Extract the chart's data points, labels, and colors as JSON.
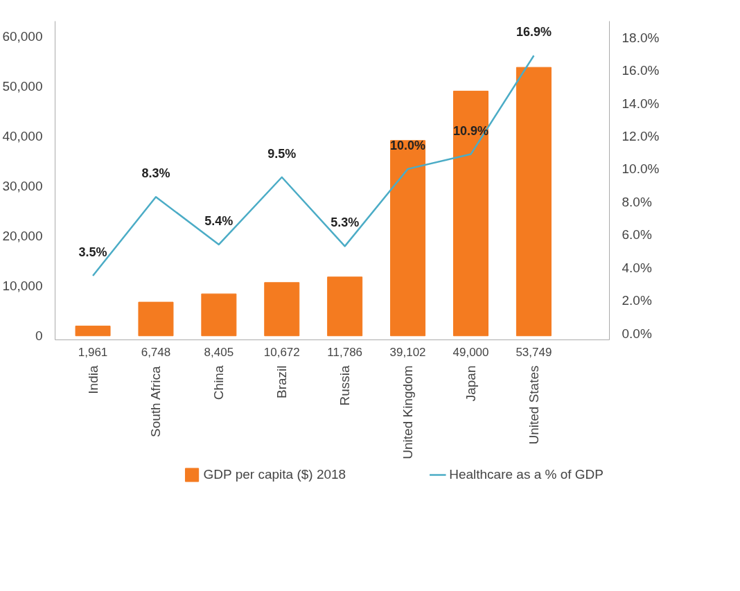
{
  "chart_data": {
    "type": "bar",
    "categories": [
      "India",
      "South Africa",
      "China",
      "Brazil",
      "Russia",
      "United Kingdom",
      "Japan",
      "United States"
    ],
    "series": [
      {
        "name": "GDP per capita ($) 2018",
        "color": "#f47b20",
        "values": [
          1961,
          6748,
          8405,
          10672,
          11786,
          39102,
          49000,
          53749
        ],
        "value_labels": [
          "1,961",
          "6,748",
          "8,405",
          "10,672",
          "11,786",
          "39,102",
          "49,000",
          "53,749"
        ]
      },
      {
        "name": "Healthcare as a % of GDP",
        "color": "#4bacc6",
        "type": "line",
        "axis": "y2",
        "values": [
          3.5,
          8.3,
          5.4,
          9.5,
          5.3,
          10.0,
          10.9,
          16.9
        ],
        "value_labels": [
          "3.5%",
          "8.3%",
          "5.4%",
          "9.5%",
          "5.3%",
          "10.0%",
          "10.9%",
          "16.9%"
        ]
      }
    ],
    "ylim": [
      -800,
      63000
    ],
    "yticks": [
      {
        "value": 0,
        "label": "0"
      },
      {
        "value": 10000,
        "label": "10,000"
      },
      {
        "value": 20000,
        "label": "20,000"
      },
      {
        "value": 30000,
        "label": "30,000"
      },
      {
        "value": 40000,
        "label": "40,000"
      },
      {
        "value": 50000,
        "label": "50,000"
      },
      {
        "value": 60000,
        "label": "60,000"
      }
    ],
    "y2lim": [
      -0.4,
      19.0
    ],
    "y2ticks": [
      {
        "value": 0,
        "label": "0.0%"
      },
      {
        "value": 2,
        "label": "2.0%"
      },
      {
        "value": 4,
        "label": "4.0%"
      },
      {
        "value": 6,
        "label": "6.0%"
      },
      {
        "value": 8,
        "label": "8.0%"
      },
      {
        "value": 10,
        "label": "10.0%"
      },
      {
        "value": 12,
        "label": "12.0%"
      },
      {
        "value": 14,
        "label": "14.0%"
      },
      {
        "value": 16,
        "label": "16.0%"
      },
      {
        "value": 18,
        "label": "18.0%"
      }
    ],
    "grid": false,
    "legend": "bottom",
    "marker": "none"
  }
}
